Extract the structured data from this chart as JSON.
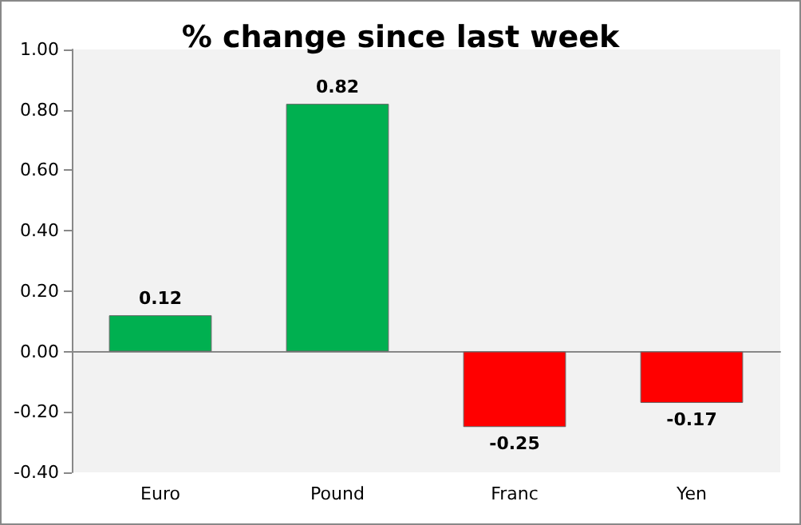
{
  "chart_data": {
    "type": "bar",
    "title": "% change since last week",
    "categories": [
      "Euro",
      "Pound",
      "Franc",
      "Yen"
    ],
    "values": [
      0.12,
      0.82,
      -0.25,
      -0.17
    ],
    "colors": [
      "#00b050",
      "#00b050",
      "#ff0000",
      "#ff0000"
    ],
    "ylim": [
      -0.4,
      1.0
    ],
    "yticks": [
      {
        "value": -0.4,
        "label": "-0.40"
      },
      {
        "value": -0.2,
        "label": "-0.20"
      },
      {
        "value": 0,
        "label": "0.00"
      },
      {
        "value": 0.2,
        "label": "0.20"
      },
      {
        "value": 0.4,
        "label": "0.40"
      },
      {
        "value": 0.6,
        "label": "0.60"
      },
      {
        "value": 0.8,
        "label": "0.80"
      },
      {
        "value": 1.0,
        "label": "1.00"
      }
    ],
    "data_labels": true
  }
}
